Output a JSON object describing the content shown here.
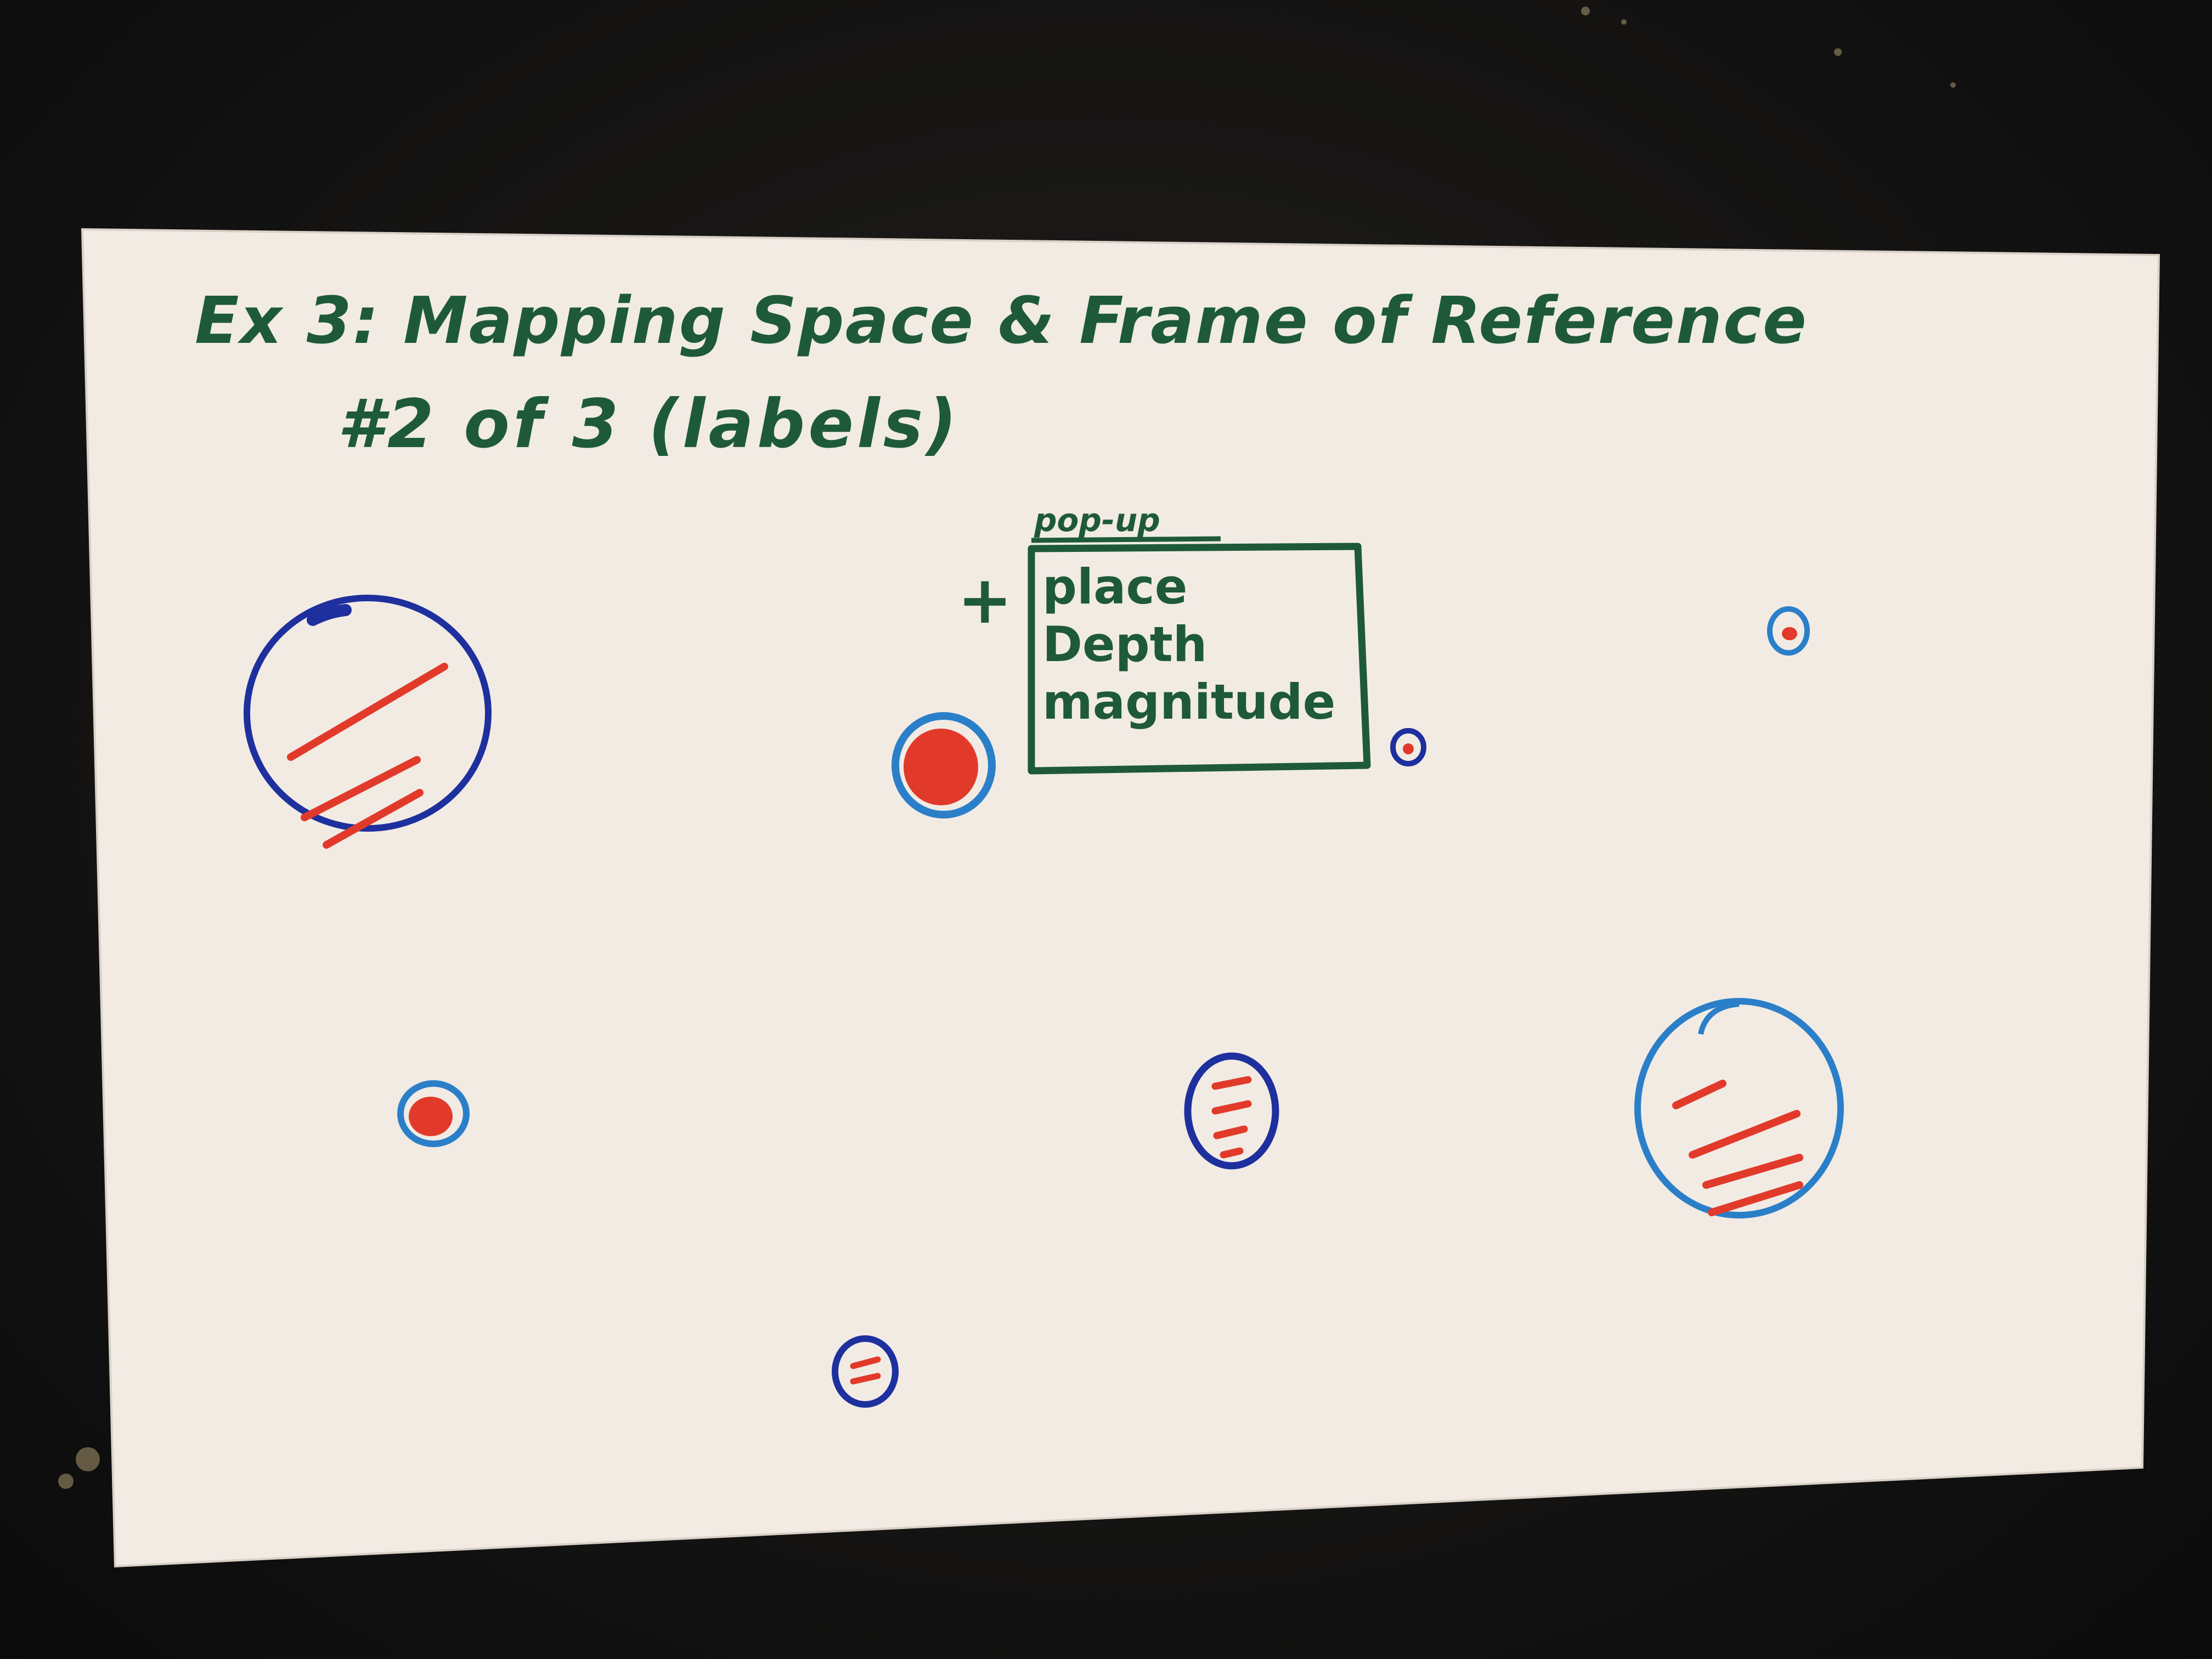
{
  "card": {
    "title": "Ex 3: Mapping Space & Frame of Reference",
    "subtitle": "#2 of 3 (labels)"
  },
  "popup": {
    "caption": "pop-up",
    "plus_symbol": "+",
    "lines": [
      "place",
      "Depth",
      "magnitude"
    ]
  },
  "colors": {
    "ink_green": "#1e5a3a",
    "ink_blue": "#1e2f9e",
    "ink_light_blue": "#2b7fc9",
    "ink_red": "#e23a2a",
    "paper": "#f1ebe4",
    "background": "#141416"
  }
}
